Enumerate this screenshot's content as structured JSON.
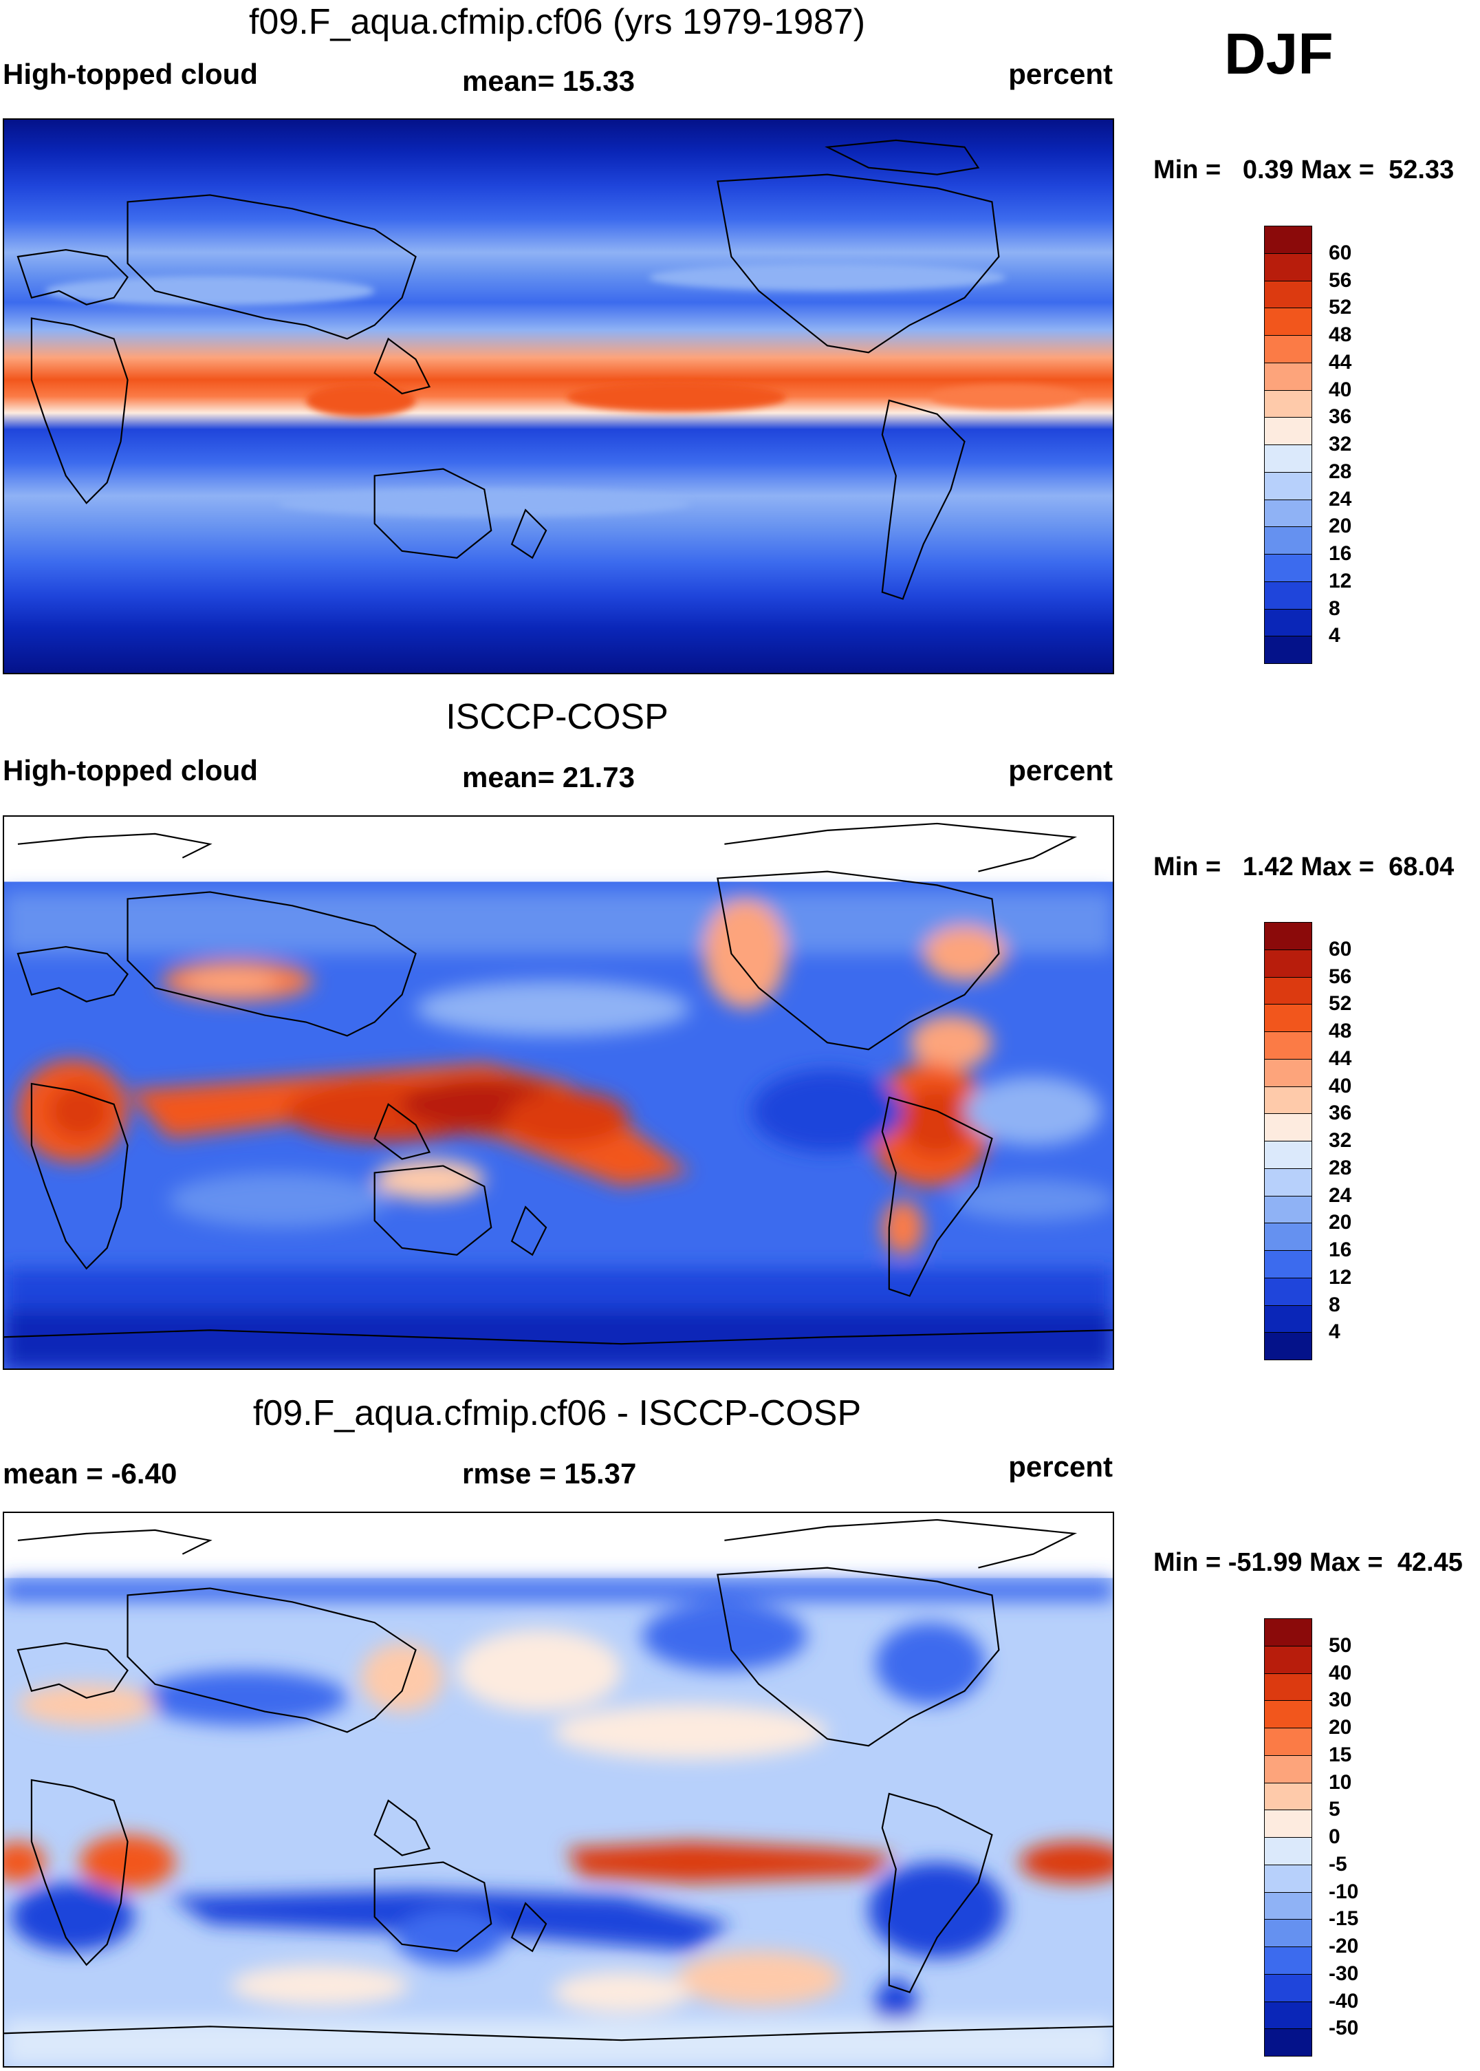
{
  "season": "DJF",
  "panels": [
    {
      "id": "model",
      "title": "f09.F_aqua.cfmip.cf06 (yrs 1979-1987)",
      "left_label": "High-topped cloud",
      "center_label": "mean=  15.33",
      "right_label": "percent",
      "minmax": "Min =   0.39 Max =  52.33",
      "colorbar": {
        "levels": [
          "60",
          "56",
          "52",
          "48",
          "44",
          "40",
          "36",
          "32",
          "28",
          "24",
          "20",
          "16",
          "12",
          "8",
          "4"
        ],
        "colors": [
          "#8b0a0a",
          "#b81d0c",
          "#dc3a10",
          "#f2561c",
          "#fb7b46",
          "#fda47b",
          "#fecaaa",
          "#fdebdf",
          "#dbe9fb",
          "#b7d0fb",
          "#8fb2f5",
          "#6591f0",
          "#3c6bee",
          "#1f45db",
          "#0a26b8",
          "#04128a"
        ]
      }
    },
    {
      "id": "obs",
      "title": "ISCCP-COSP",
      "left_label": "High-topped cloud",
      "center_label": "mean=  21.73",
      "right_label": "percent",
      "minmax": "Min =   1.42 Max =  68.04",
      "colorbar": {
        "levels": [
          "60",
          "56",
          "52",
          "48",
          "44",
          "40",
          "36",
          "32",
          "28",
          "24",
          "20",
          "16",
          "12",
          "8",
          "4"
        ],
        "colors": [
          "#8b0a0a",
          "#b81d0c",
          "#dc3a10",
          "#f2561c",
          "#fb7b46",
          "#fda47b",
          "#fecaaa",
          "#fdebdf",
          "#dbe9fb",
          "#b7d0fb",
          "#8fb2f5",
          "#6591f0",
          "#3c6bee",
          "#1f45db",
          "#0a26b8",
          "#04128a"
        ]
      }
    },
    {
      "id": "diff",
      "title": "f09.F_aqua.cfmip.cf06 - ISCCP-COSP",
      "left_label": "mean =  -6.40",
      "center_label": "rmse =  15.37",
      "right_label": "percent",
      "minmax": "Min = -51.99 Max =  42.45",
      "colorbar": {
        "levels": [
          "50",
          "40",
          "30",
          "20",
          "15",
          "10",
          "5",
          "0",
          "-5",
          "-10",
          "-15",
          "-20",
          "-30",
          "-40",
          "-50"
        ],
        "colors": [
          "#8b0a0a",
          "#b81d0c",
          "#dc3a10",
          "#f2561c",
          "#fb7b46",
          "#fda47b",
          "#fecaaa",
          "#fdebdf",
          "#dbe9fb",
          "#b7d0fb",
          "#8fb2f5",
          "#6591f0",
          "#3c6bee",
          "#1f45db",
          "#0a26b8",
          "#04128a"
        ]
      }
    }
  ]
}
